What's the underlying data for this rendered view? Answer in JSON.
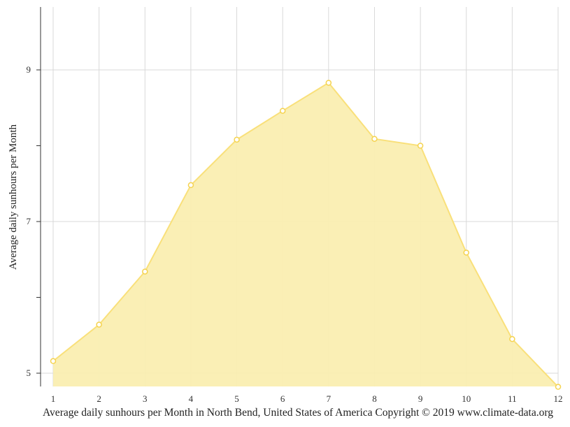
{
  "chart_data": {
    "type": "area",
    "title": "",
    "xlabel": "Average daily sunhours per Month in North Bend, United States of America Copyright © 2019 www.climate-data.org",
    "ylabel": "Average daily sunhours per Month",
    "categories": [
      "1",
      "2",
      "3",
      "4",
      "5",
      "6",
      "7",
      "8",
      "9",
      "10",
      "11",
      "12"
    ],
    "series": [
      {
        "name": "Average daily sunhours",
        "values": [
          5.16,
          5.64,
          6.34,
          7.48,
          8.08,
          8.46,
          8.83,
          8.09,
          8.0,
          6.59,
          5.45,
          4.82
        ],
        "color": "#f9e07a"
      }
    ],
    "y_ticks_labeled": [
      5,
      7,
      9
    ],
    "y_ticks_minor": [
      6,
      8
    ],
    "ylim": [
      4.82,
      9.83
    ],
    "grid": true,
    "legend": "none"
  },
  "colors": {
    "fill": "#faeeb1",
    "line": "#f9e07a",
    "marker_stroke": "#f5d34f",
    "grid": "#d9d9d9",
    "axis": "#333333"
  },
  "caption": "Average daily sunhours per Month in North Bend, United States of America Copyright © 2019 www.climate-data.org",
  "yaxis_title": "Average daily sunhours per Month"
}
